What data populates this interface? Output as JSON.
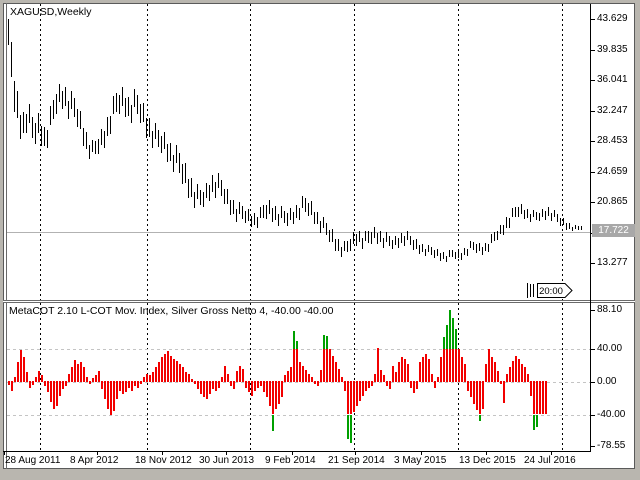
{
  "window": {
    "symbol_title": "XAGUSD,Weekly",
    "indicator_title": "MetaCOT 2.10 L-COT Mov. Index, Silver Gross Netto 4, -40.00 -40.00",
    "time_tag": "20:00"
  },
  "colors": {
    "bar": "#000000",
    "hist_red": "#f20000",
    "hist_green": "#00a000",
    "grid": "#000000",
    "level_line": "#c4c4c4",
    "current_price_line": "#b2b2b2",
    "price_tag_bg": "#a8a8a8",
    "price_tag_text": "#ffffff",
    "background": "#ffffff",
    "frame": "#b9b6af"
  },
  "chart_data": [
    {
      "type": "bar",
      "title": "XAGUSD,Weekly",
      "ylabel": "price",
      "y_ticks": [
        "43.629",
        "39.835",
        "36.041",
        "32.247",
        "28.453",
        "24.659",
        "20.865",
        "17.071",
        "13.277"
      ],
      "current_price": "17.722",
      "x_labels": [
        "28 Aug 2011",
        "8 Apr 2012",
        "18 Nov 2012",
        "30 Jun 2013",
        "9 Feb 2014",
        "21 Sep 2014",
        "3 May 2015",
        "13 Dec 2015",
        "24 Jul 2016"
      ],
      "ylim": [
        13.277,
        43.629
      ],
      "grid": "vertical-dashed",
      "envelope_high_low": [
        [
          8,
          43.6,
          38.0
        ],
        [
          11,
          41.5,
          34.5
        ],
        [
          14,
          37.5,
          31.2
        ],
        [
          18,
          34.0,
          29.0
        ],
        [
          22,
          32.5,
          28.2
        ],
        [
          27,
          33.8,
          29.8
        ],
        [
          33,
          31.5,
          27.3
        ],
        [
          39,
          32.2,
          28.2
        ],
        [
          45,
          30.5,
          26.8
        ],
        [
          51,
          33.2,
          29.2
        ],
        [
          57,
          35.6,
          31.8
        ],
        [
          63,
          36.1,
          32.4
        ],
        [
          69,
          35.0,
          31.0
        ],
        [
          75,
          34.0,
          30.4
        ],
        [
          81,
          32.0,
          28.4
        ],
        [
          87,
          29.8,
          26.4
        ],
        [
          93,
          28.4,
          25.8
        ],
        [
          99,
          29.6,
          26.6
        ],
        [
          105,
          31.2,
          27.6
        ],
        [
          111,
          33.6,
          29.6
        ],
        [
          117,
          35.1,
          31.2
        ],
        [
          123,
          35.4,
          31.6
        ],
        [
          129,
          34.4,
          30.6
        ],
        [
          135,
          35.0,
          31.0
        ],
        [
          141,
          33.9,
          30.0
        ],
        [
          147,
          32.4,
          28.5
        ],
        [
          153,
          31.0,
          27.4
        ],
        [
          159,
          30.0,
          26.6
        ],
        [
          165,
          29.7,
          26.2
        ],
        [
          171,
          28.5,
          24.9
        ],
        [
          177,
          27.8,
          23.9
        ],
        [
          183,
          26.4,
          22.4
        ],
        [
          189,
          24.9,
          21.0
        ],
        [
          195,
          23.4,
          20.0
        ],
        [
          201,
          22.6,
          19.5
        ],
        [
          207,
          23.6,
          20.6
        ],
        [
          213,
          24.9,
          21.6
        ],
        [
          219,
          24.4,
          21.0
        ],
        [
          225,
          23.0,
          20.0
        ],
        [
          231,
          21.9,
          19.0
        ],
        [
          237,
          21.0,
          18.3
        ],
        [
          243,
          20.5,
          18.0
        ],
        [
          249,
          20.0,
          17.7
        ],
        [
          255,
          19.8,
          17.5
        ],
        [
          261,
          20.4,
          18.0
        ],
        [
          267,
          21.4,
          18.5
        ],
        [
          273,
          21.0,
          18.2
        ],
        [
          279,
          20.5,
          17.8
        ],
        [
          285,
          20.0,
          17.5
        ],
        [
          291,
          20.3,
          17.8
        ],
        [
          297,
          21.0,
          18.4
        ],
        [
          303,
          21.8,
          19.0
        ],
        [
          309,
          21.4,
          18.7
        ],
        [
          315,
          20.4,
          17.9
        ],
        [
          321,
          19.4,
          16.9
        ],
        [
          327,
          18.4,
          15.9
        ],
        [
          333,
          17.4,
          15.0
        ],
        [
          339,
          16.4,
          14.2
        ],
        [
          345,
          15.9,
          13.8
        ],
        [
          351,
          17.0,
          14.6
        ],
        [
          357,
          17.8,
          15.5
        ],
        [
          363,
          17.2,
          15.0
        ],
        [
          369,
          17.5,
          15.2
        ],
        [
          375,
          18.0,
          15.8
        ],
        [
          381,
          17.5,
          15.3
        ],
        [
          387,
          17.0,
          15.0
        ],
        [
          393,
          16.5,
          14.8
        ],
        [
          399,
          17.2,
          15.2
        ],
        [
          405,
          17.5,
          15.5
        ],
        [
          411,
          16.8,
          14.8
        ],
        [
          417,
          16.2,
          14.4
        ],
        [
          423,
          15.8,
          14.2
        ],
        [
          429,
          15.5,
          14.0
        ],
        [
          435,
          15.2,
          13.7
        ],
        [
          441,
          15.0,
          13.5
        ],
        [
          447,
          14.7,
          13.35
        ],
        [
          453,
          15.2,
          13.6
        ],
        [
          459,
          14.9,
          13.4
        ],
        [
          465,
          15.5,
          14.0
        ],
        [
          471,
          16.2,
          14.5
        ],
        [
          477,
          16.0,
          14.3
        ],
        [
          483,
          15.7,
          14.2
        ],
        [
          489,
          16.5,
          14.8
        ],
        [
          495,
          17.5,
          15.6
        ],
        [
          501,
          18.2,
          16.4
        ],
        [
          507,
          19.5,
          17.3
        ],
        [
          513,
          20.3,
          18.3
        ],
        [
          519,
          20.8,
          18.9
        ],
        [
          525,
          20.4,
          18.6
        ],
        [
          531,
          20.0,
          18.3
        ],
        [
          537,
          19.8,
          18.1
        ],
        [
          543,
          20.2,
          18.5
        ],
        [
          549,
          20.6,
          18.7
        ],
        [
          555,
          19.8,
          18.1
        ],
        [
          561,
          19.2,
          17.6
        ],
        [
          567,
          18.6,
          17.3
        ],
        [
          573,
          18.1,
          17.25
        ],
        [
          578,
          17.95,
          17.35
        ],
        [
          583,
          18.0,
          17.45
        ]
      ]
    },
    {
      "type": "histogram",
      "title": "MetaCOT 2.10 L-COT Mov. Index, Silver Gross Netto 4, -40.00 -40.00",
      "y_ticks": [
        "88.10",
        "40.00",
        "0.00",
        "-40.00",
        "-78.55"
      ],
      "levels": [
        40,
        -40
      ],
      "ylim": [
        -78.55,
        88.1
      ],
      "values_by_x": [
        [
          8,
          -5
        ],
        [
          11,
          -12
        ],
        [
          14,
          6
        ],
        [
          17,
          25
        ],
        [
          20,
          39
        ],
        [
          23,
          30
        ],
        [
          26,
          12
        ],
        [
          29,
          -8
        ],
        [
          32,
          -5
        ],
        [
          35,
          6
        ],
        [
          38,
          14
        ],
        [
          41,
          8
        ],
        [
          44,
          -6
        ],
        [
          47,
          -14
        ],
        [
          50,
          -26
        ],
        [
          53,
          -34
        ],
        [
          56,
          -30
        ],
        [
          59,
          -18
        ],
        [
          62,
          -10
        ],
        [
          65,
          -6
        ],
        [
          68,
          10
        ],
        [
          71,
          18
        ],
        [
          74,
          27
        ],
        [
          77,
          22
        ],
        [
          80,
          25
        ],
        [
          83,
          18
        ],
        [
          86,
          6
        ],
        [
          89,
          -4
        ],
        [
          92,
          5
        ],
        [
          95,
          9
        ],
        [
          98,
          14
        ],
        [
          101,
          -10
        ],
        [
          104,
          -22
        ],
        [
          107,
          -34
        ],
        [
          110,
          -42
        ],
        [
          113,
          -36
        ],
        [
          116,
          -22
        ],
        [
          119,
          -12
        ],
        [
          122,
          -16
        ],
        [
          125,
          -13
        ],
        [
          128,
          -9
        ],
        [
          131,
          -12
        ],
        [
          134,
          -6
        ],
        [
          137,
          -9
        ],
        [
          140,
          -4
        ],
        [
          143,
          6
        ],
        [
          146,
          10
        ],
        [
          149,
          8
        ],
        [
          152,
          12
        ],
        [
          155,
          18
        ],
        [
          158,
          24
        ],
        [
          161,
          30
        ],
        [
          164,
          34
        ],
        [
          167,
          38
        ],
        [
          170,
          32
        ],
        [
          173,
          28
        ],
        [
          176,
          26
        ],
        [
          179,
          22
        ],
        [
          182,
          18
        ],
        [
          185,
          12
        ],
        [
          188,
          10
        ],
        [
          191,
          4
        ],
        [
          194,
          -4
        ],
        [
          197,
          -10
        ],
        [
          200,
          -16
        ],
        [
          203,
          -20
        ],
        [
          206,
          -22
        ],
        [
          209,
          -16
        ],
        [
          212,
          -10
        ],
        [
          215,
          -12
        ],
        [
          218,
          -8
        ],
        [
          221,
          6
        ],
        [
          224,
          20
        ],
        [
          227,
          10
        ],
        [
          230,
          -6
        ],
        [
          233,
          -10
        ],
        [
          236,
          14
        ],
        [
          239,
          20
        ],
        [
          242,
          16
        ],
        [
          245,
          -8
        ],
        [
          248,
          -14
        ],
        [
          251,
          -18
        ],
        [
          254,
          -12
        ],
        [
          257,
          -8
        ],
        [
          260,
          -6
        ],
        [
          263,
          -14
        ],
        [
          266,
          -20
        ],
        [
          269,
          -30
        ],
        [
          272,
          -42
        ],
        [
          275,
          -34
        ],
        [
          278,
          -28
        ],
        [
          281,
          -20
        ],
        [
          284,
          8
        ],
        [
          287,
          14
        ],
        [
          290,
          18
        ],
        [
          293,
          45
        ],
        [
          296,
          42
        ],
        [
          299,
          25
        ],
        [
          302,
          20
        ],
        [
          305,
          15
        ],
        [
          308,
          10
        ],
        [
          311,
          6
        ],
        [
          314,
          -4
        ],
        [
          317,
          -6
        ],
        [
          320,
          15
        ],
        [
          323,
          46
        ],
        [
          326,
          44
        ],
        [
          329,
          40
        ],
        [
          332,
          32
        ],
        [
          335,
          24
        ],
        [
          338,
          16
        ],
        [
          341,
          6
        ],
        [
          344,
          -12
        ],
        [
          347,
          -42
        ],
        [
          350,
          -45
        ],
        [
          353,
          -38
        ],
        [
          356,
          -30
        ],
        [
          359,
          -24
        ],
        [
          362,
          -18
        ],
        [
          365,
          -12
        ],
        [
          368,
          -8
        ],
        [
          371,
          -6
        ],
        [
          374,
          10
        ],
        [
          377,
          42
        ],
        [
          380,
          15
        ],
        [
          383,
          8
        ],
        [
          386,
          -6
        ],
        [
          389,
          -10
        ],
        [
          392,
          20
        ],
        [
          395,
          12
        ],
        [
          398,
          25
        ],
        [
          401,
          30
        ],
        [
          404,
          28
        ],
        [
          407,
          22
        ],
        [
          410,
          -8
        ],
        [
          413,
          -15
        ],
        [
          416,
          -10
        ],
        [
          419,
          25
        ],
        [
          422,
          30
        ],
        [
          425,
          34
        ],
        [
          428,
          28
        ],
        [
          431,
          10
        ],
        [
          434,
          -8
        ],
        [
          437,
          6
        ],
        [
          440,
          30
        ],
        [
          443,
          55
        ],
        [
          446,
          70
        ],
        [
          449,
          88
        ],
        [
          452,
          78
        ],
        [
          455,
          65
        ],
        [
          458,
          40
        ],
        [
          461,
          30
        ],
        [
          464,
          22
        ],
        [
          467,
          -12
        ],
        [
          470,
          -20
        ],
        [
          473,
          -28
        ],
        [
          476,
          -35
        ],
        [
          479,
          -45
        ],
        [
          482,
          -34
        ],
        [
          485,
          22
        ],
        [
          488,
          40
        ],
        [
          491,
          30
        ],
        [
          494,
          24
        ],
        [
          497,
          14
        ],
        [
          500,
          -4
        ],
        [
          503,
          -27
        ],
        [
          506,
          10
        ],
        [
          509,
          18
        ],
        [
          512,
          26
        ],
        [
          515,
          32
        ],
        [
          518,
          28
        ],
        [
          521,
          22
        ],
        [
          524,
          18
        ],
        [
          527,
          10
        ],
        [
          530,
          -18
        ],
        [
          533,
          -45
        ],
        [
          536,
          -48
        ],
        [
          539,
          -40
        ],
        [
          542,
          -40
        ],
        [
          545,
          -40
        ]
      ],
      "green_beyond_level_bars": [
        [
          272,
          -60
        ],
        [
          293,
          62
        ],
        [
          296,
          50
        ],
        [
          323,
          57
        ],
        [
          326,
          56
        ],
        [
          347,
          -70
        ],
        [
          350,
          -74
        ],
        [
          443,
          55
        ],
        [
          446,
          70
        ],
        [
          449,
          88
        ],
        [
          452,
          78
        ],
        [
          455,
          65
        ],
        [
          479,
          -47
        ],
        [
          533,
          -58
        ],
        [
          536,
          -55
        ]
      ]
    }
  ]
}
